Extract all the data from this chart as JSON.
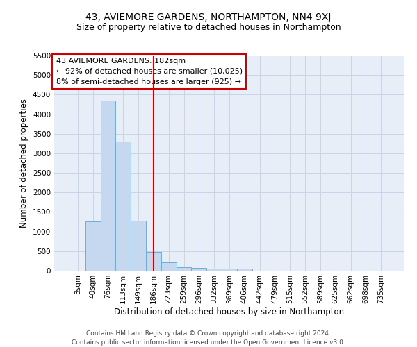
{
  "title": "43, AVIEMORE GARDENS, NORTHAMPTON, NN4 9XJ",
  "subtitle": "Size of property relative to detached houses in Northampton",
  "xlabel": "Distribution of detached houses by size in Northampton",
  "ylabel": "Number of detached properties",
  "footer_line1": "Contains HM Land Registry data © Crown copyright and database right 2024.",
  "footer_line2": "Contains public sector information licensed under the Open Government Licence v3.0.",
  "annotation_line1": "43 AVIEMORE GARDENS: 182sqm",
  "annotation_line2": "← 92% of detached houses are smaller (10,025)",
  "annotation_line3": "8% of semi-detached houses are larger (925) →",
  "bar_color": "#c5d8f0",
  "bar_edge_color": "#6baed6",
  "vline_color": "#cc0000",
  "vline_x": 5,
  "categories": [
    "3sqm",
    "40sqm",
    "76sqm",
    "113sqm",
    "149sqm",
    "186sqm",
    "223sqm",
    "259sqm",
    "296sqm",
    "332sqm",
    "369sqm",
    "406sqm",
    "442sqm",
    "479sqm",
    "515sqm",
    "552sqm",
    "589sqm",
    "625sqm",
    "662sqm",
    "698sqm",
    "735sqm"
  ],
  "values": [
    0,
    1260,
    4350,
    3300,
    1270,
    480,
    220,
    90,
    70,
    55,
    55,
    50,
    0,
    0,
    0,
    0,
    0,
    0,
    0,
    0,
    0
  ],
  "ylim": [
    0,
    5500
  ],
  "yticks": [
    0,
    500,
    1000,
    1500,
    2000,
    2500,
    3000,
    3500,
    4000,
    4500,
    5000,
    5500
  ],
  "grid_color": "#c8d4e8",
  "background_color": "#e8eef8",
  "annotation_box_facecolor": "#ffffff",
  "annotation_box_edgecolor": "#cc0000",
  "title_fontsize": 10,
  "subtitle_fontsize": 9,
  "axis_label_fontsize": 8.5,
  "tick_fontsize": 7.5,
  "annotation_fontsize": 8,
  "footer_fontsize": 6.5
}
